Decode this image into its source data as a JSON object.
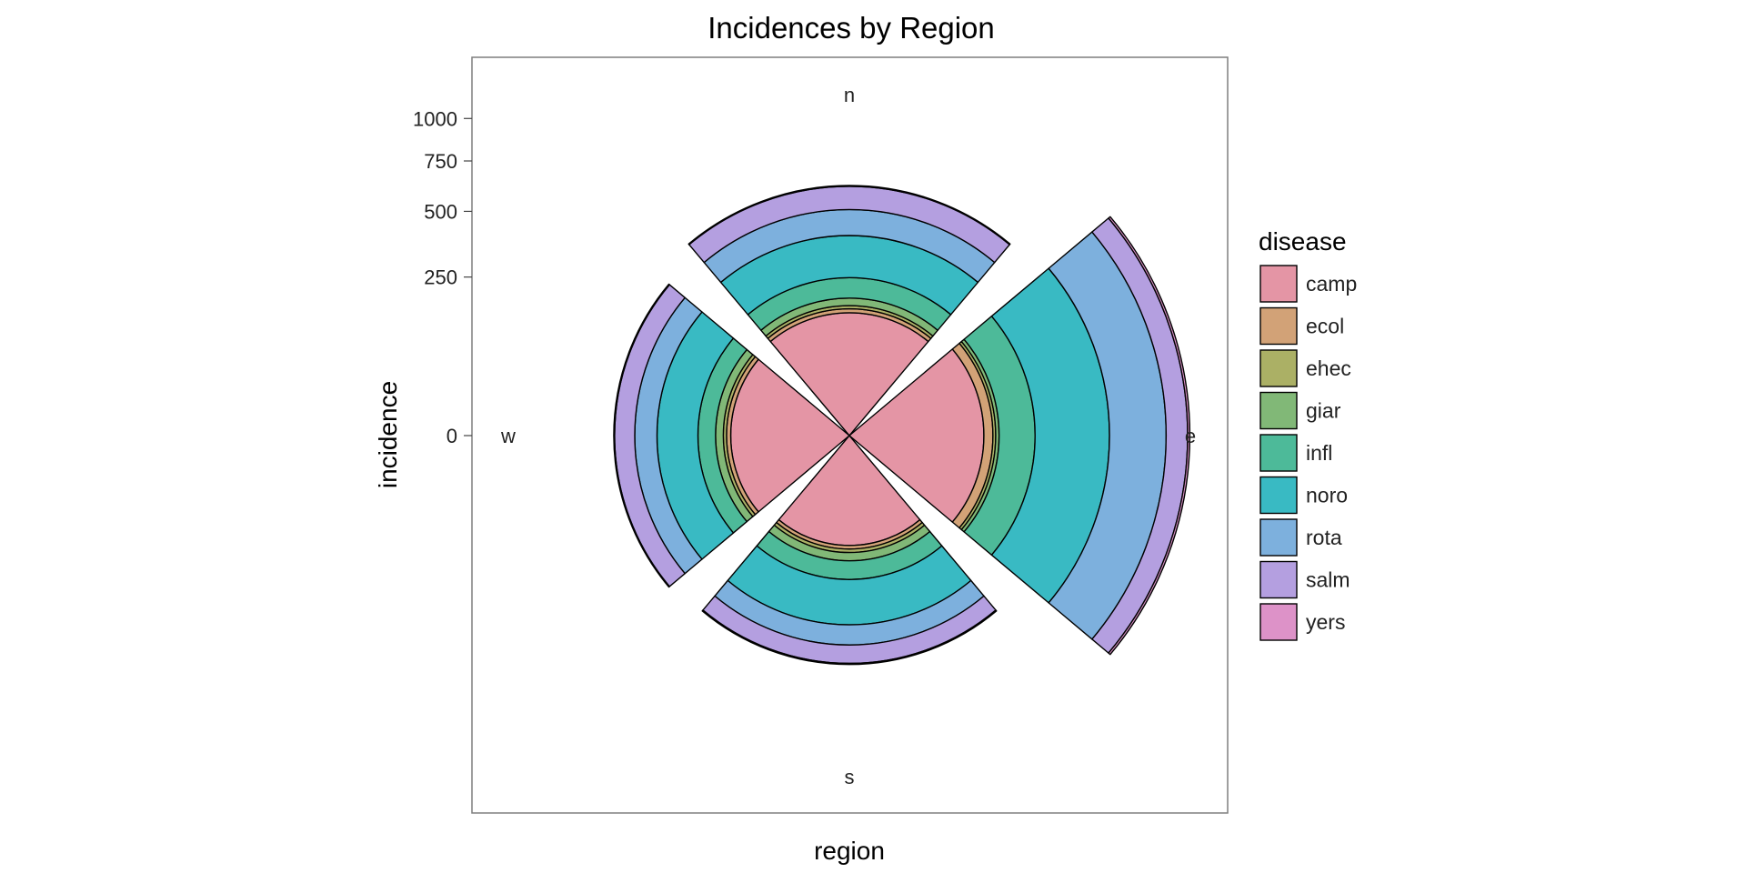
{
  "chart_data": {
    "type": "coxcomb",
    "title": "Incidences by Region",
    "xlabel": "region",
    "ylabel": "incidence",
    "ylim": [
      0,
      1200
    ],
    "yticks": [
      0,
      250,
      500,
      750,
      1000
    ],
    "legend": {
      "title": "disease",
      "position": "right"
    },
    "categories": [
      "n",
      "e",
      "s",
      "w"
    ],
    "series": [
      {
        "name": "camp",
        "color": "#E495A5",
        "values": [
          150,
          180,
          120,
          140
        ]
      },
      {
        "name": "ecol",
        "color": "#D2A277",
        "values": [
          10,
          25,
          8,
          10
        ]
      },
      {
        "name": "ehec",
        "color": "#ABB065",
        "values": [
          8,
          8,
          8,
          8
        ]
      },
      {
        "name": "giar",
        "color": "#81B877",
        "values": [
          20,
          10,
          20,
          20
        ]
      },
      {
        "name": "infl",
        "color": "#4DBA99",
        "values": [
          60,
          120,
          50,
          50
        ]
      },
      {
        "name": "noro",
        "color": "#39BAC3",
        "values": [
          150,
          330,
          150,
          140
        ]
      },
      {
        "name": "rota",
        "color": "#7DB0DD",
        "values": [
          110,
          325,
          80,
          90
        ]
      },
      {
        "name": "salm",
        "color": "#B49FE0",
        "values": [
          110,
          140,
          80,
          90
        ]
      },
      {
        "name": "yers",
        "color": "#DD92C8",
        "values": [
          4,
          15,
          5,
          4
        ]
      }
    ]
  }
}
